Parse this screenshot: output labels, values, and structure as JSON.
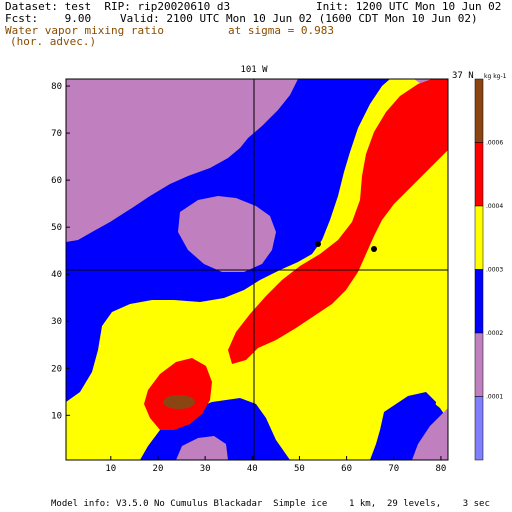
{
  "header": {
    "dataset": "Dataset: test  RIP: rip20020610 d3",
    "init": "Init: 1200 UTC Mon 10 Jun 02",
    "fcst": "Fcst:    9.00",
    "valid": "Valid: 2100 UTC Mon 10 Jun 02 (1600 CDT Mon 10 Jun 02)",
    "field": "Water vapor mixing ratio",
    "sigma": "at sigma = 0.983",
    "advec": "(hor. advec.)"
  },
  "map": {
    "top_label": "101 W",
    "side_label": "37 N",
    "x_ticks": [
      "10",
      "20",
      "30",
      "40",
      "50",
      "60",
      "70",
      "80"
    ],
    "y_ticks": [
      "10",
      "20",
      "30",
      "40",
      "50",
      "60",
      "70",
      "80"
    ],
    "colors": {
      "purple": "#c080c0",
      "blue": "#0000ff",
      "yellow": "#ffff00",
      "red": "#ff0000",
      "brown": "#8b4513",
      "lightblue": "#8080ff"
    }
  },
  "colorbar": {
    "units_label": "kg kg-1",
    "labels": [
      ".0006",
      ".0004",
      ".0003",
      ".0002",
      ".0001"
    ],
    "colors": [
      "#8b4513",
      "#ff0000",
      "#ffff00",
      "#0000ff",
      "#c080c0",
      "#8080ff"
    ]
  },
  "footer": "Model info: V3.5.0 No Cumulus Blackadar  Simple ice    1 km,  29 levels,    3 sec"
}
